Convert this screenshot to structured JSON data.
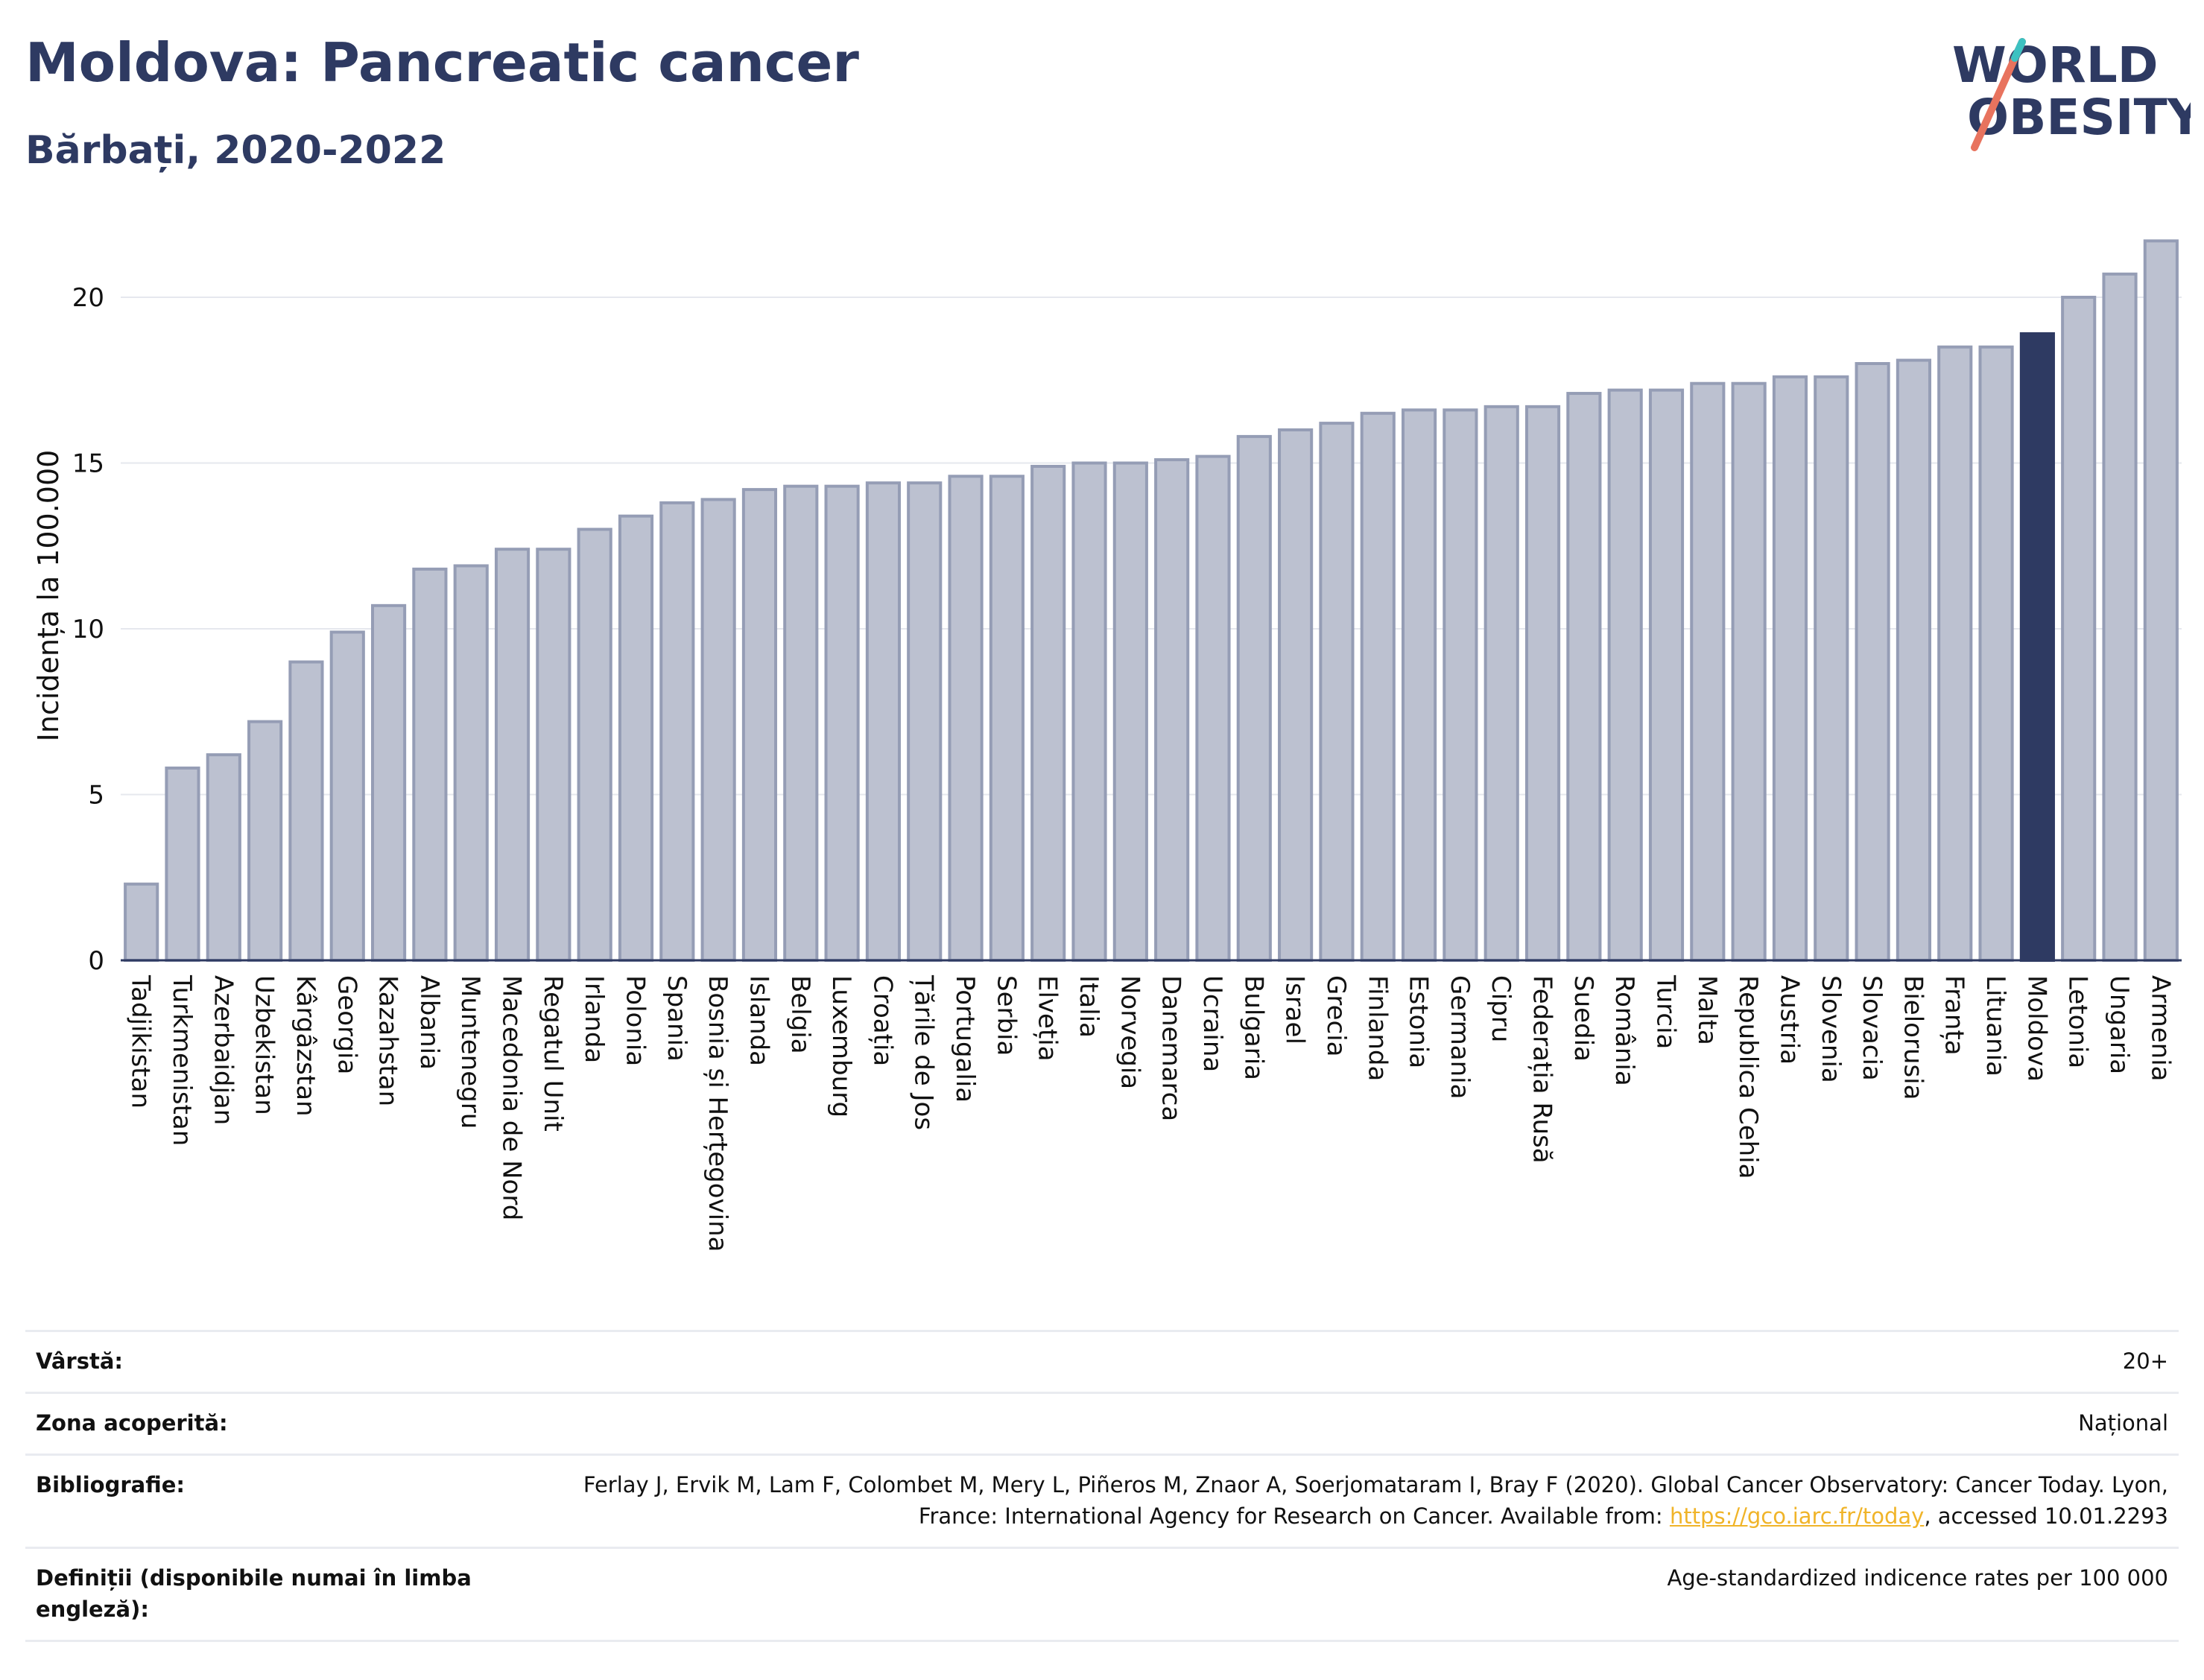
{
  "header": {
    "title": "Moldova: Pancreatic cancer",
    "subtitle": "Bărbați, 2020-2022",
    "logo_line1": "WORLD",
    "logo_line2": "OBESITY"
  },
  "colors": {
    "bar": "#bcc1d0",
    "bar_edge": "#959db5",
    "highlight": "#2e3a62",
    "title": "#2e3a62",
    "grid": "#e6e8ee",
    "logo_slash": "#e8735e",
    "logo_slash_top": "#3cc1c1",
    "link": "#f0b429"
  },
  "chart_data": {
    "type": "bar",
    "title": "Moldova: Pancreatic cancer",
    "subtitle": "Bărbați, 2020-2022",
    "ylabel": "Incidența la 100.000",
    "xlabel": "",
    "ylim": [
      0,
      22
    ],
    "yticks": [
      0,
      5,
      10,
      15,
      20
    ],
    "grid": true,
    "highlight": "Moldova",
    "categories": [
      "Tadjikistan",
      "Turkmenistan",
      "Azerbaidjan",
      "Uzbekistan",
      "Kârgâzstan",
      "Georgia",
      "Kazahstan",
      "Albania",
      "Muntenegru",
      "Macedonia de Nord",
      "Regatul Unit",
      "Irlanda",
      "Polonia",
      "Spania",
      "Bosnia și Herțegovina",
      "Islanda",
      "Belgia",
      "Luxemburg",
      "Croația",
      "Țările de Jos",
      "Portugalia",
      "Serbia",
      "Elveția",
      "Italia",
      "Norvegia",
      "Danemarca",
      "Ucraina",
      "Bulgaria",
      "Israel",
      "Grecia",
      "Finlanda",
      "Estonia",
      "Germania",
      "Cipru",
      "Federația Rusă",
      "Suedia",
      "România",
      "Turcia",
      "Malta",
      "Republica Cehia",
      "Austria",
      "Slovenia",
      "Slovacia",
      "Bielorusia",
      "Franța",
      "Lituania",
      "Moldova",
      "Letonia",
      "Ungaria",
      "Armenia"
    ],
    "values": [
      2.3,
      5.8,
      6.2,
      7.2,
      9.0,
      9.9,
      10.7,
      11.8,
      11.9,
      12.4,
      12.4,
      13.0,
      13.4,
      13.8,
      13.9,
      14.2,
      14.3,
      14.3,
      14.4,
      14.4,
      14.6,
      14.6,
      14.9,
      15.0,
      15.0,
      15.1,
      15.2,
      15.8,
      16.0,
      16.2,
      16.5,
      16.6,
      16.6,
      16.7,
      16.7,
      17.1,
      17.2,
      17.2,
      17.4,
      17.4,
      17.6,
      17.6,
      18.0,
      18.1,
      18.5,
      18.5,
      18.9,
      20.0,
      20.7,
      21.7
    ]
  },
  "info": {
    "age_label": "Vârstă:",
    "age_value": "20+",
    "zone_label": "Zona acoperită:",
    "zone_value": "Național",
    "biblio_label": "Bibliografie:",
    "biblio_text_1": "Ferlay J, Ervik M, Lam F, Colombet M, Mery L, Piñeros M, Znaor A, Soerjomataram I, Bray F (2020). Global Cancer Observatory: Cancer Today. Lyon, France: International Agency for Research on Cancer. Available from: ",
    "biblio_link": "https://gco.iarc.fr/today",
    "biblio_text_2": ", accessed 10.01.2293",
    "def_label": "Definiții (disponibile numai în limba engleză):",
    "def_value": "Age-standardized indicence rates per 100 000"
  }
}
